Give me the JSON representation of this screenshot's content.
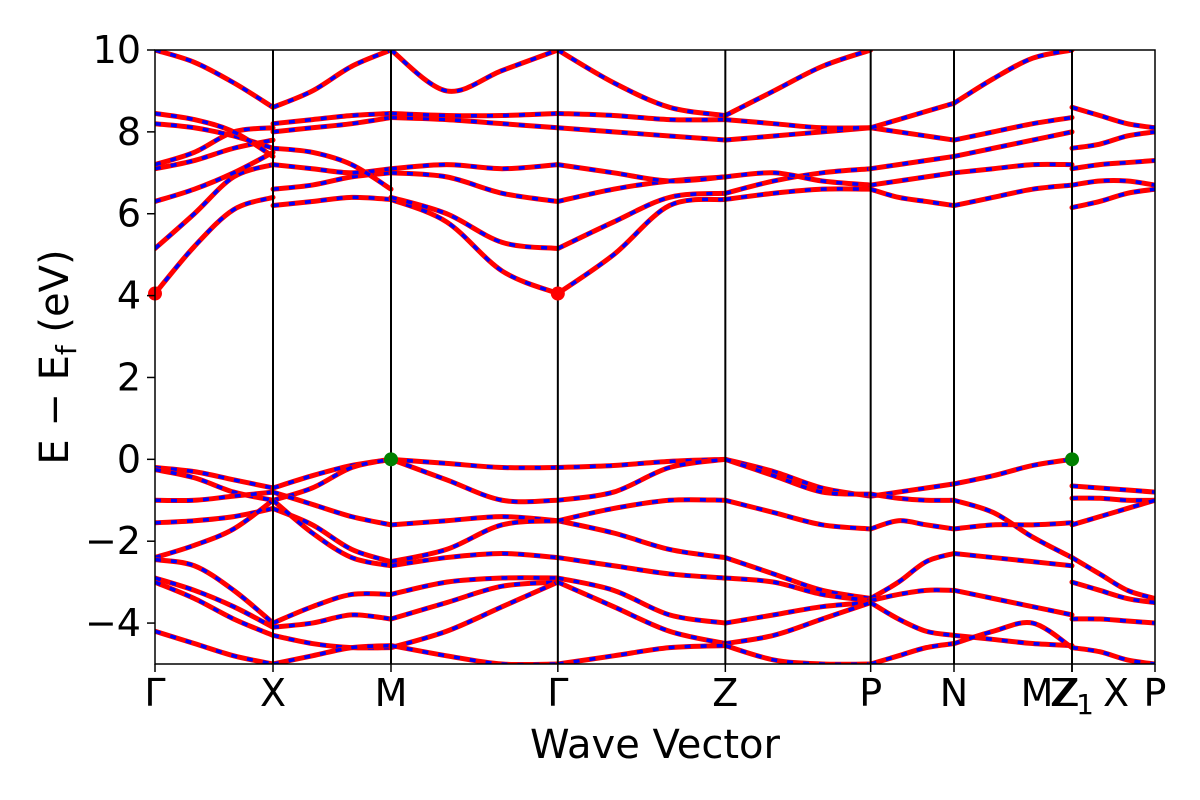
{
  "chart_data": {
    "type": "line",
    "title": "",
    "xlabel": "Wave Vector",
    "ylabel": "E − E_f (eV)",
    "ylabel_parts": {
      "main": "E − E",
      "sub": "f",
      "unit": " (eV)"
    },
    "ylim": [
      -5,
      10
    ],
    "yticks": [
      -4,
      -2,
      0,
      2,
      4,
      6,
      8,
      10
    ],
    "ytick_labels": [
      "−4",
      "−2",
      "0",
      "2",
      "4",
      "6",
      "8",
      "10"
    ],
    "kpath": [
      {
        "label": "Γ",
        "x": 0.0
      },
      {
        "label": "X",
        "x": 0.708
      },
      {
        "label": "M",
        "x": 1.416
      },
      {
        "label": "Γ",
        "x": 2.417
      },
      {
        "label": "Z",
        "x": 3.422
      },
      {
        "label": "P",
        "x": 4.294
      },
      {
        "label": "N",
        "x": 4.794
      },
      {
        "label": "MZ",
        "x": 5.502
      },
      {
        "label": "Z",
        "x": 5.502,
        "sub": "1"
      },
      {
        "label": "X",
        "x": 5.502
      },
      {
        "label": "P",
        "x": 6.0
      }
    ],
    "xlim": [
      0,
      6.0
    ],
    "grid": false,
    "legend": "none",
    "colors": {
      "spin_up": "#ff0000",
      "spin_down": "#0000ff",
      "vbm": "#008000",
      "cbm": "#ff0000",
      "vertical_lines": "#000000"
    },
    "band_edges": {
      "cbm": [
        {
          "x": 0.0,
          "y": 4.05
        },
        {
          "x": 2.417,
          "y": 4.05
        }
      ],
      "vbm": [
        {
          "x": 1.416,
          "y": 0.0
        },
        {
          "x": 5.502,
          "y": 0.0
        }
      ]
    },
    "series": [
      {
        "segment": [
          0.0,
          0.708
        ],
        "bands": [
          [
            4.05,
            5.2,
            6.1,
            6.4
          ],
          [
            5.15,
            6.0,
            6.9,
            7.2
          ],
          [
            6.3,
            6.6,
            7.0,
            7.5
          ],
          [
            7.1,
            7.3,
            7.6,
            7.8
          ],
          [
            7.2,
            7.5,
            8.0,
            8.1
          ],
          [
            8.2,
            8.1,
            7.9,
            7.6
          ],
          [
            8.45,
            8.3,
            8.0,
            7.4
          ],
          [
            10.0,
            9.7,
            9.2,
            8.6
          ],
          [
            -0.2,
            -0.3,
            -0.5,
            -0.7
          ],
          [
            -0.25,
            -0.45,
            -0.8,
            -1.0
          ],
          [
            -1.0,
            -1.0,
            -0.9,
            -0.8
          ],
          [
            -1.55,
            -1.5,
            -1.4,
            -1.2
          ],
          [
            -2.4,
            -2.1,
            -1.7,
            -1.0
          ],
          [
            -2.45,
            -2.6,
            -3.2,
            -4.0
          ],
          [
            -2.9,
            -3.2,
            -3.6,
            -4.1
          ],
          [
            -3.0,
            -3.4,
            -3.9,
            -4.3
          ],
          [
            -4.2,
            -4.5,
            -4.8,
            -5.0
          ]
        ]
      },
      {
        "segment": [
          0.708,
          1.416
        ],
        "bands": [
          [
            6.2,
            6.3,
            6.4,
            6.35
          ],
          [
            6.6,
            6.7,
            6.9,
            7.0
          ],
          [
            7.2,
            7.1,
            7.0,
            7.1
          ],
          [
            7.6,
            7.5,
            7.2,
            6.6
          ],
          [
            8.0,
            8.1,
            8.2,
            8.35
          ],
          [
            8.2,
            8.3,
            8.4,
            8.45
          ],
          [
            8.6,
            9.0,
            9.6,
            10.0
          ],
          [
            -0.7,
            -0.4,
            -0.15,
            0.0
          ],
          [
            -1.0,
            -0.7,
            -0.2,
            0.0
          ],
          [
            -0.8,
            -1.1,
            -1.4,
            -1.6
          ],
          [
            -1.2,
            -1.6,
            -2.2,
            -2.5
          ],
          [
            -1.0,
            -1.8,
            -2.4,
            -2.6
          ],
          [
            -4.0,
            -3.6,
            -3.3,
            -3.3
          ],
          [
            -4.1,
            -4.0,
            -3.8,
            -3.9
          ],
          [
            -4.3,
            -4.5,
            -4.6,
            -4.6
          ],
          [
            -5.0,
            -4.8,
            -4.6,
            -4.55
          ]
        ]
      },
      {
        "segment": [
          1.416,
          2.417
        ],
        "bands": [
          [
            6.35,
            5.8,
            4.6,
            4.05
          ],
          [
            6.4,
            6.0,
            5.3,
            5.15
          ],
          [
            7.0,
            6.9,
            6.5,
            6.3
          ],
          [
            7.1,
            7.2,
            7.1,
            7.2
          ],
          [
            8.35,
            8.3,
            8.2,
            8.1
          ],
          [
            8.45,
            8.4,
            8.4,
            8.45
          ],
          [
            10.0,
            9.0,
            9.5,
            10.0
          ],
          [
            0.0,
            -0.1,
            -0.2,
            -0.2
          ],
          [
            0.0,
            -0.5,
            -1.0,
            -1.0
          ],
          [
            -1.6,
            -1.5,
            -1.4,
            -1.5
          ],
          [
            -2.5,
            -2.2,
            -1.6,
            -1.5
          ],
          [
            -2.6,
            -2.4,
            -2.3,
            -2.4
          ],
          [
            -3.3,
            -3.0,
            -2.9,
            -2.9
          ],
          [
            -3.9,
            -3.5,
            -3.1,
            -3.0
          ],
          [
            -4.6,
            -4.2,
            -3.6,
            -3.0
          ],
          [
            -4.55,
            -4.8,
            -5.0,
            -5.0
          ]
        ]
      },
      {
        "segment": [
          2.417,
          3.422
        ],
        "bands": [
          [
            4.05,
            5.0,
            6.2,
            6.35
          ],
          [
            5.15,
            5.8,
            6.4,
            6.5
          ],
          [
            6.3,
            6.6,
            6.8,
            6.9
          ],
          [
            7.2,
            7.0,
            6.8,
            6.9
          ],
          [
            8.1,
            8.0,
            7.9,
            7.8
          ],
          [
            8.45,
            8.4,
            8.3,
            8.3
          ],
          [
            10.0,
            9.2,
            8.6,
            8.4
          ],
          [
            -0.2,
            -0.15,
            -0.05,
            0.0
          ],
          [
            -1.0,
            -0.8,
            -0.2,
            0.0
          ],
          [
            -1.5,
            -1.8,
            -2.2,
            -2.4
          ],
          [
            -1.5,
            -1.2,
            -1.0,
            -1.0
          ],
          [
            -2.4,
            -2.6,
            -2.8,
            -2.9
          ],
          [
            -2.9,
            -3.2,
            -3.8,
            -4.0
          ],
          [
            -3.0,
            -3.6,
            -4.2,
            -4.5
          ],
          [
            -5.0,
            -4.8,
            -4.6,
            -4.55
          ]
        ]
      },
      {
        "segment": [
          3.422,
          4.294
        ],
        "bands": [
          [
            6.35,
            6.5,
            6.6,
            6.6
          ],
          [
            6.5,
            6.8,
            7.0,
            7.1
          ],
          [
            6.9,
            7.0,
            6.8,
            6.7
          ],
          [
            7.8,
            7.9,
            8.0,
            8.1
          ],
          [
            8.3,
            8.2,
            8.1,
            8.1
          ],
          [
            8.4,
            9.0,
            9.6,
            10.0
          ],
          [
            0.0,
            -0.3,
            -0.7,
            -0.9
          ],
          [
            0.0,
            -0.4,
            -0.8,
            -0.85
          ],
          [
            -1.0,
            -1.3,
            -1.6,
            -1.7
          ],
          [
            -2.4,
            -2.8,
            -3.2,
            -3.4
          ],
          [
            -2.9,
            -3.0,
            -3.3,
            -3.45
          ],
          [
            -4.0,
            -3.8,
            -3.6,
            -3.5
          ],
          [
            -4.5,
            -4.3,
            -3.9,
            -3.5
          ],
          [
            -4.55,
            -4.9,
            -5.0,
            -5.0
          ]
        ]
      },
      {
        "segment": [
          4.294,
          4.794
        ],
        "bands": [
          [
            6.6,
            6.4,
            6.3,
            6.2
          ],
          [
            6.7,
            6.8,
            6.9,
            7.0
          ],
          [
            7.1,
            7.2,
            7.3,
            7.4
          ],
          [
            8.1,
            8.0,
            7.9,
            7.8
          ],
          [
            8.1,
            8.3,
            8.5,
            8.7
          ],
          [
            -0.9,
            -0.8,
            -0.7,
            -0.6
          ],
          [
            -0.85,
            -0.95,
            -1.0,
            -1.0
          ],
          [
            -1.7,
            -1.5,
            -1.6,
            -1.7
          ],
          [
            -3.4,
            -3.0,
            -2.5,
            -2.3
          ],
          [
            -3.45,
            -3.3,
            -3.2,
            -3.2
          ],
          [
            -3.5,
            -3.9,
            -4.2,
            -4.3
          ],
          [
            -5.0,
            -4.8,
            -4.6,
            -4.5
          ]
        ]
      },
      {
        "segment": [
          4.794,
          5.502
        ],
        "bands": [
          [
            6.2,
            6.4,
            6.6,
            6.7
          ],
          [
            7.0,
            7.1,
            7.2,
            7.2
          ],
          [
            7.4,
            7.6,
            7.8,
            8.0
          ],
          [
            7.8,
            8.0,
            8.2,
            8.35
          ],
          [
            8.7,
            9.3,
            9.8,
            10.0
          ],
          [
            -0.6,
            -0.4,
            -0.15,
            0.0
          ],
          [
            -1.0,
            -1.3,
            -1.9,
            -2.4
          ],
          [
            -1.7,
            -1.6,
            -1.6,
            -1.55
          ],
          [
            -2.3,
            -2.4,
            -2.5,
            -2.6
          ],
          [
            -3.2,
            -3.4,
            -3.6,
            -3.8
          ],
          [
            -4.3,
            -4.4,
            -4.5,
            -4.55
          ],
          [
            -4.5,
            -4.2,
            -4.0,
            -4.6
          ]
        ]
      },
      {
        "segment": [
          5.502,
          6.0
        ],
        "bands": [
          [
            6.15,
            6.3,
            6.5,
            6.6
          ],
          [
            6.7,
            6.8,
            6.8,
            6.7
          ],
          [
            7.1,
            7.2,
            7.25,
            7.3
          ],
          [
            7.6,
            7.7,
            7.9,
            8.0
          ],
          [
            8.6,
            8.4,
            8.2,
            8.1
          ],
          [
            -0.65,
            -0.7,
            -0.75,
            -0.8
          ],
          [
            -0.95,
            -0.95,
            -1.0,
            -1.0
          ],
          [
            -1.6,
            -1.4,
            -1.2,
            -1.0
          ],
          [
            -2.4,
            -2.8,
            -3.2,
            -3.4
          ],
          [
            -3.0,
            -3.2,
            -3.4,
            -3.5
          ],
          [
            -3.9,
            -3.9,
            -3.95,
            -4.0
          ],
          [
            -4.6,
            -4.7,
            -4.9,
            -5.0
          ]
        ]
      }
    ]
  }
}
